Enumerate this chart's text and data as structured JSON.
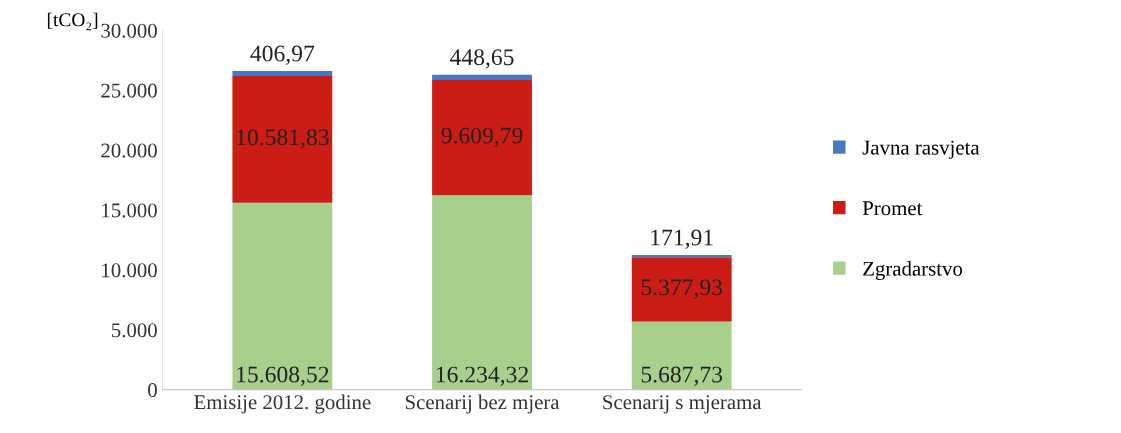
{
  "chart_data": {
    "type": "bar",
    "stacked": true,
    "ylabel": "[tCO₂]",
    "categories": [
      "Emisije 2012. godine",
      "Scenarij bez mjera",
      "Scenarij s mjerama"
    ],
    "series": [
      {
        "name": "Zgradarstvo",
        "color": "#a9cf8c",
        "values": [
          15608.52,
          16234.32,
          5687.73
        ],
        "value_labels": [
          "15.608,52",
          "16.234,32",
          "5.687,73"
        ]
      },
      {
        "name": "Promet",
        "color": "#cc1c16",
        "values": [
          10581.83,
          9609.79,
          5377.93
        ],
        "value_labels": [
          "10.581,83",
          "9.609,79",
          "5.377,93"
        ]
      },
      {
        "name": "Javna rasvjeta",
        "color": "#4a78c0",
        "values": [
          406.97,
          448.65,
          171.91
        ],
        "value_labels": [
          "406,97",
          "448,65",
          "171,91"
        ]
      }
    ],
    "ylim": [
      0,
      30000
    ],
    "yticks": [
      {
        "value": 0,
        "label": "0"
      },
      {
        "value": 5000,
        "label": "5.000"
      },
      {
        "value": 10000,
        "label": "10.000"
      },
      {
        "value": 15000,
        "label": "15.000"
      },
      {
        "value": 20000,
        "label": "20.000"
      },
      {
        "value": 25000,
        "label": "25.000"
      },
      {
        "value": 30000,
        "label": "30.000"
      }
    ],
    "legend": "right",
    "grid": false
  }
}
